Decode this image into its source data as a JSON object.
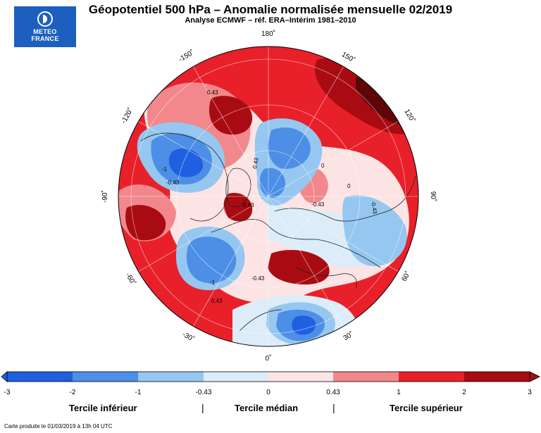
{
  "logo": {
    "line1": "METEO",
    "line2": "FRANCE"
  },
  "title": "Géopotentiel 500 hPa – Anomalie normalisée mensuelle 02/2019",
  "subtitle": "Analyse ECMWF – réf. ERA–Intérim 1981–2010",
  "longitude_labels": [
    "180˚",
    "150˚",
    "120˚",
    "90˚",
    "60˚",
    "30˚",
    "0˚",
    "-30˚",
    "-60˚",
    "-90˚",
    "-120˚",
    "-150˚"
  ],
  "contour_labels": [
    "0.43",
    "0.43",
    "-1",
    "-0.43",
    "-0.43",
    "-0.43",
    "-1",
    "-0.43",
    "0.43",
    "0",
    "0",
    "0.43"
  ],
  "colors": {
    "c1": "#1f5fe0",
    "c2": "#4d8ee6",
    "c3": "#95c7f0",
    "c4": "#dcecf8",
    "c5": "#fde4e4",
    "c6": "#f2888c",
    "c7": "#e8202a",
    "c8": "#a80c12"
  },
  "colorbar": {
    "ticks": [
      "-3",
      "-2",
      "-1",
      "-0.43",
      "0",
      "0.43",
      "1",
      "2",
      "3"
    ]
  },
  "terciles": {
    "lower": "Tercile inférieur",
    "middle": "Tercile médian",
    "upper": "Tercile supérieur",
    "separator": "|"
  },
  "footer": "Carte produite le 01/03/2019 à 13h 04 UTC"
}
